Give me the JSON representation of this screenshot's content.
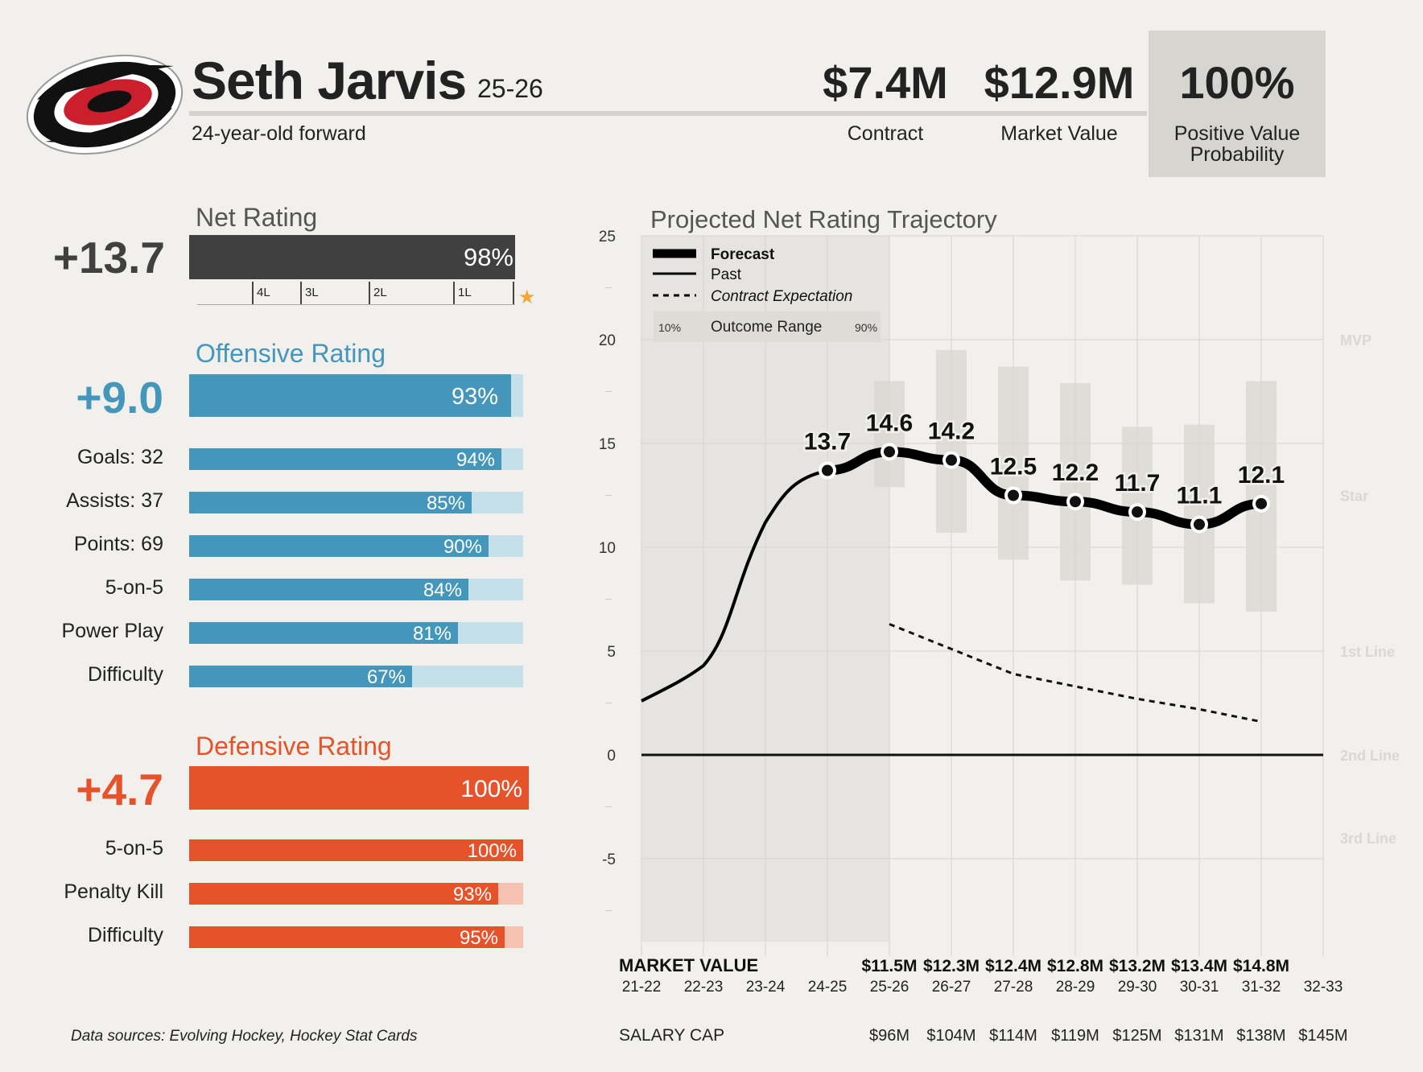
{
  "header": {
    "player_name": "Seth Jarvis",
    "season": "25-26",
    "description": "24-year-old forward",
    "stats": [
      {
        "value": "$7.4M",
        "label": "Contract"
      },
      {
        "value": "$12.9M",
        "label": "Market Value"
      },
      {
        "value": "100%",
        "label": "Positive Value Probability"
      }
    ]
  },
  "net_rating": {
    "title": "Net Rating",
    "value": "+13.7",
    "percentile": 98,
    "percentile_label": "98%",
    "ranks": [
      "4L",
      "3L",
      "2L",
      "1L"
    ],
    "color": "#404040"
  },
  "offensive": {
    "title": "Offensive Rating",
    "value": "+9.0",
    "percentile": 93,
    "percentile_label": "93%",
    "color": "#4496bb",
    "light_color": "#c5dfeb",
    "rows": [
      {
        "label": "Goals: 32",
        "pct": 94,
        "pct_label": "94%"
      },
      {
        "label": "Assists: 37",
        "pct": 85,
        "pct_label": "85%"
      },
      {
        "label": "Points: 69",
        "pct": 90,
        "pct_label": "90%"
      },
      {
        "label": "5-on-5",
        "pct": 84,
        "pct_label": "84%"
      },
      {
        "label": "Power Play",
        "pct": 81,
        "pct_label": "81%"
      },
      {
        "label": "Difficulty",
        "pct": 67,
        "pct_label": "67%"
      }
    ]
  },
  "defensive": {
    "title": "Defensive Rating",
    "value": "+4.7",
    "percentile": 100,
    "percentile_label": "100%",
    "color": "#e6532b",
    "light_color": "#f5c2b2",
    "rows": [
      {
        "label": "5-on-5",
        "pct": 100,
        "pct_label": "100%"
      },
      {
        "label": "Penalty Kill",
        "pct": 93,
        "pct_label": "93%"
      },
      {
        "label": "Difficulty",
        "pct": 95,
        "pct_label": "95%"
      }
    ]
  },
  "chart_data": {
    "type": "line",
    "title": "Projected Net Rating Trajectory",
    "ylim": [
      -9,
      25
    ],
    "yticks": [
      "25",
      "20",
      "15",
      "10",
      "5",
      "0",
      "-5"
    ],
    "ytick_values": [
      25,
      20,
      15,
      10,
      5,
      0,
      -5
    ],
    "x": [
      "21-22",
      "22-23",
      "23-24",
      "24-25",
      "25-26",
      "26-27",
      "27-28",
      "28-29",
      "29-30",
      "30-31",
      "31-32",
      "32-33"
    ],
    "past": [
      2.6,
      4.3,
      11.2,
      13.7
    ],
    "forecast": [
      {
        "season": "24-25",
        "value": 13.7,
        "label": "13.7"
      },
      {
        "season": "25-26",
        "value": 14.6,
        "label": "14.6"
      },
      {
        "season": "26-27",
        "value": 14.2,
        "label": "14.2"
      },
      {
        "season": "27-28",
        "value": 12.5,
        "label": "12.5"
      },
      {
        "season": "28-29",
        "value": 12.2,
        "label": "12.2"
      },
      {
        "season": "29-30",
        "value": 11.7,
        "label": "11.7"
      },
      {
        "season": "30-31",
        "value": 11.1,
        "label": "11.1"
      },
      {
        "season": "31-32",
        "value": 12.1,
        "label": "12.1"
      }
    ],
    "outcome_range": [
      {
        "season": "25-26",
        "low": 12.9,
        "high": 18.0
      },
      {
        "season": "26-27",
        "low": 10.7,
        "high": 19.5
      },
      {
        "season": "27-28",
        "low": 9.4,
        "high": 18.7
      },
      {
        "season": "28-29",
        "low": 8.4,
        "high": 17.9
      },
      {
        "season": "29-30",
        "low": 8.2,
        "high": 15.8
      },
      {
        "season": "30-31",
        "low": 7.3,
        "high": 15.9
      },
      {
        "season": "31-32",
        "low": 6.9,
        "high": 18.0
      }
    ],
    "contract_expectation": [
      {
        "season": "25-26",
        "value": 6.3
      },
      {
        "season": "26-27",
        "value": 5.1
      },
      {
        "season": "27-28",
        "value": 3.9
      },
      {
        "season": "28-29",
        "value": 3.3
      },
      {
        "season": "29-30",
        "value": 2.7
      },
      {
        "season": "30-31",
        "value": 2.2
      },
      {
        "season": "31-32",
        "value": 1.6
      }
    ],
    "tiers": [
      {
        "label": "MVP",
        "value": 20
      },
      {
        "label": "Star",
        "value": 12.5
      },
      {
        "label": "1st Line",
        "value": 5
      },
      {
        "label": "2nd Line",
        "value": 0
      },
      {
        "label": "3rd Line",
        "value": -4
      }
    ],
    "legend": {
      "forecast": "Forecast",
      "past": "Past",
      "contract": "Contract Expectation",
      "range": "Outcome Range",
      "range_low": "10%",
      "range_high": "90%"
    },
    "market_value_title": "MARKET VALUE",
    "market_values": [
      {
        "season": "25-26",
        "value": "$11.5M"
      },
      {
        "season": "26-27",
        "value": "$12.3M"
      },
      {
        "season": "27-28",
        "value": "$12.4M"
      },
      {
        "season": "28-29",
        "value": "$12.8M"
      },
      {
        "season": "29-30",
        "value": "$13.2M"
      },
      {
        "season": "30-31",
        "value": "$13.4M"
      },
      {
        "season": "31-32",
        "value": "$14.8M"
      }
    ],
    "salary_cap_title": "SALARY CAP",
    "salary_caps": [
      {
        "season": "25-26",
        "value": "$96M"
      },
      {
        "season": "26-27",
        "value": "$104M"
      },
      {
        "season": "27-28",
        "value": "$114M"
      },
      {
        "season": "28-29",
        "value": "$119M"
      },
      {
        "season": "29-30",
        "value": "$125M"
      },
      {
        "season": "30-31",
        "value": "$131M"
      },
      {
        "season": "31-32",
        "value": "$138M"
      },
      {
        "season": "32-33",
        "value": "$145M"
      }
    ]
  },
  "footer": {
    "source": "Data sources: Evolving Hockey, Hockey Stat Cards"
  },
  "colors": {
    "star": "#f0a832",
    "logo_red": "#cc1f2d",
    "logo_black": "#111111"
  }
}
